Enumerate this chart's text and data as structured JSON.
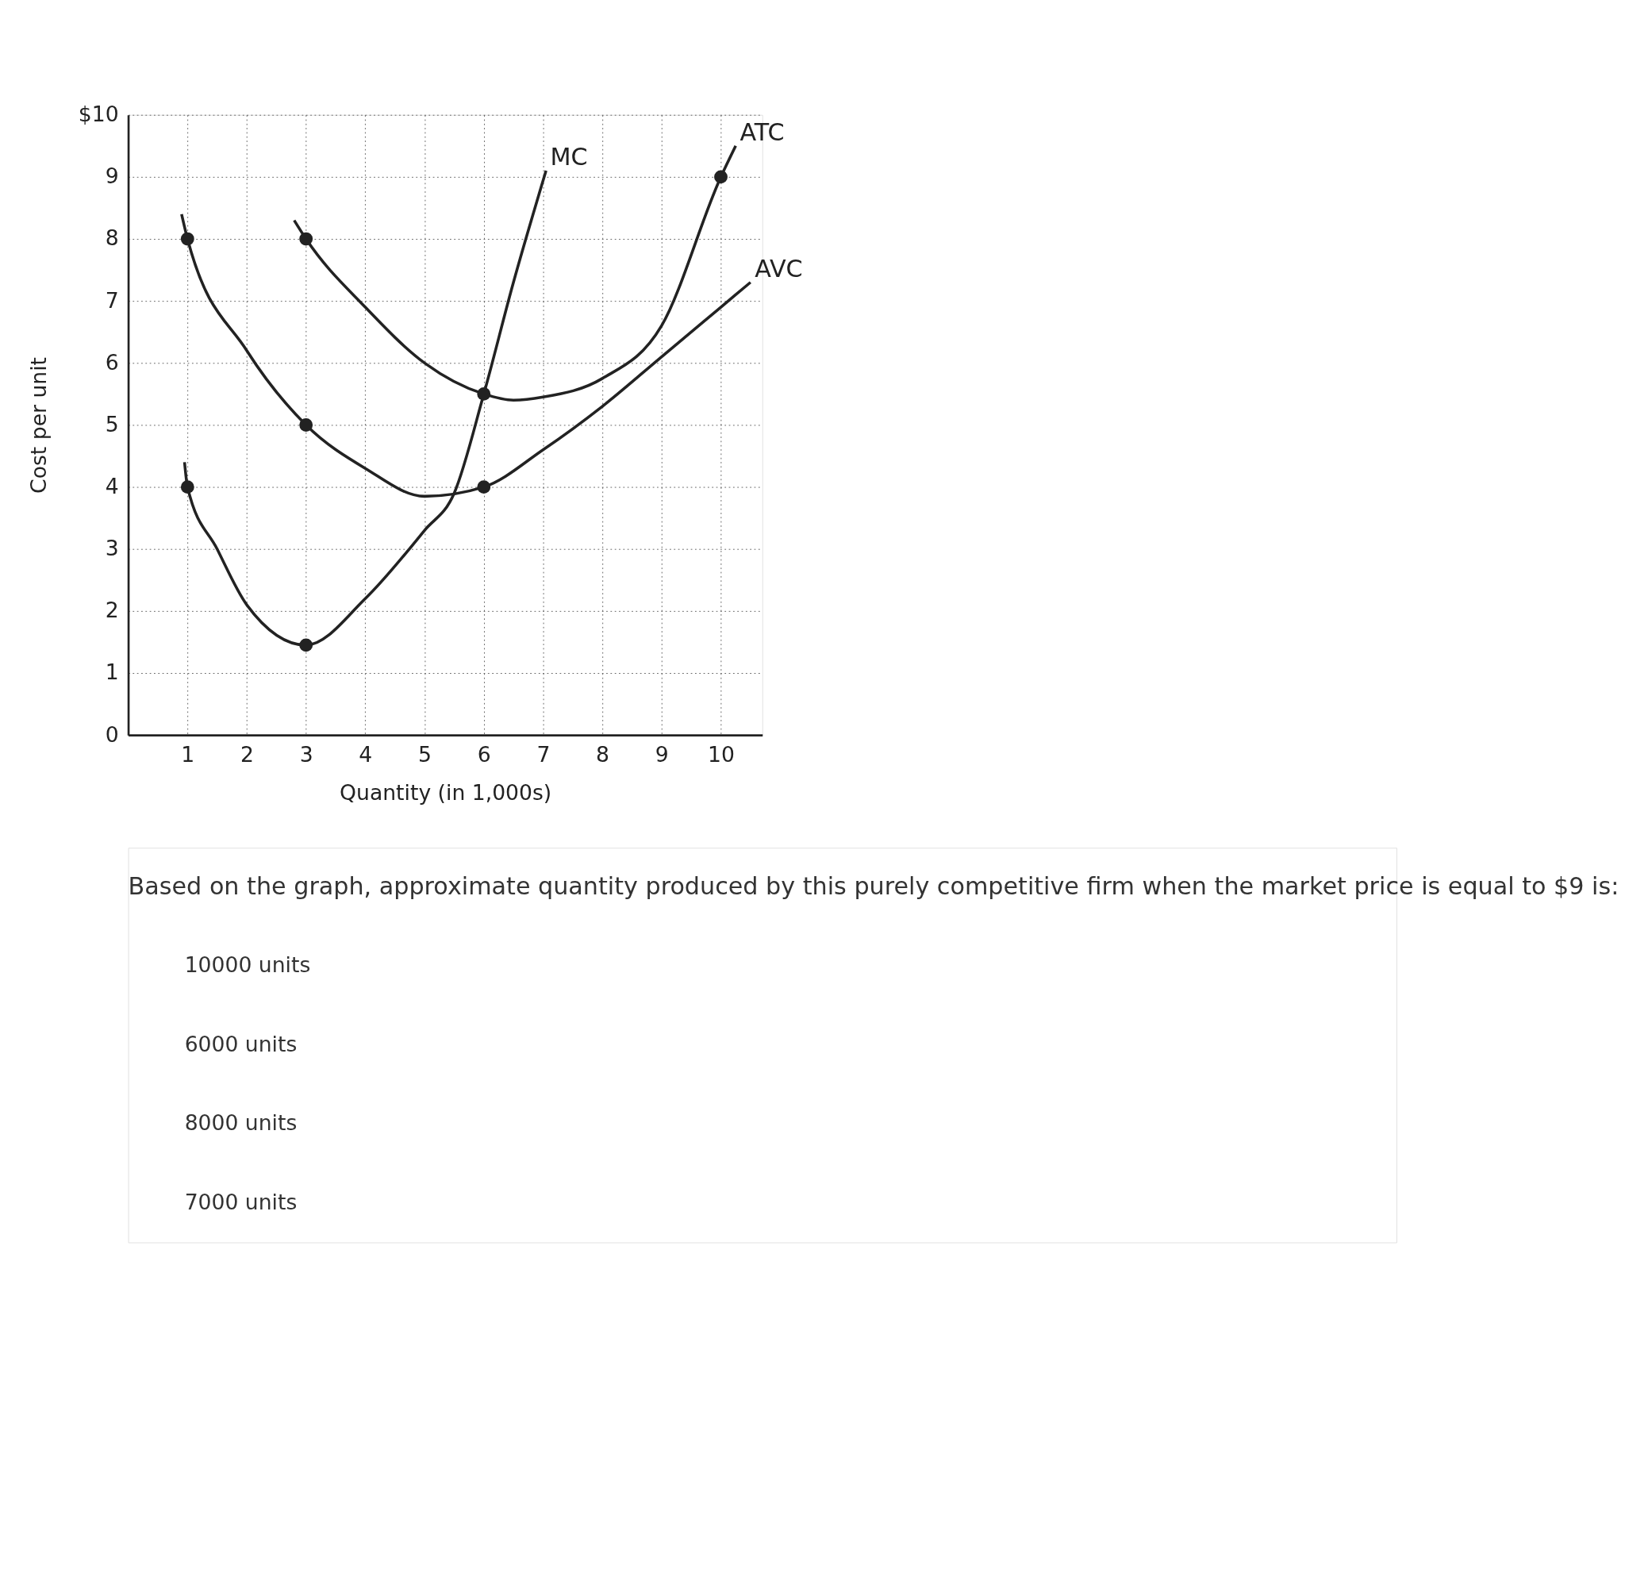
{
  "chart_data": {
    "type": "line",
    "xlabel": "Quantity (in 1,000s)",
    "ylabel": "Cost per unit",
    "xlim": [
      0,
      10.7
    ],
    "ylim": [
      0,
      10
    ],
    "xticks": [
      1,
      2,
      3,
      4,
      5,
      6,
      7,
      8,
      9,
      10
    ],
    "yticks": [
      0,
      1,
      2,
      3,
      4,
      5,
      6,
      7,
      8,
      9,
      {
        "value": 10,
        "label": "$10"
      }
    ],
    "grid": true,
    "line_style": "solid",
    "series": [
      {
        "name": "MC",
        "color": "#222222",
        "x": [
          0.95,
          1,
          1.5,
          2,
          3,
          4,
          5,
          5.5,
          6,
          6.5,
          7.05
        ],
        "values": [
          4.4,
          4,
          3,
          2.1,
          1.45,
          2.2,
          3.3,
          3.9,
          5.5,
          7.3,
          9.1
        ]
      },
      {
        "name": "ATC",
        "color": "#222222",
        "x": [
          2.8,
          3,
          4,
          5,
          6,
          6.5,
          7,
          8,
          9,
          10,
          10.25
        ],
        "values": [
          8.3,
          8,
          6.9,
          6,
          5.5,
          5.4,
          5.45,
          5.75,
          6.6,
          9,
          9.5
        ]
      },
      {
        "name": "AVC",
        "color": "#222222",
        "x": [
          0.9,
          1,
          2,
          3,
          4,
          5,
          6,
          7,
          8,
          9,
          10,
          10.5
        ],
        "values": [
          8.4,
          8,
          6.2,
          5,
          4.3,
          3.85,
          4,
          4.6,
          5.3,
          6.1,
          6.9,
          7.3
        ]
      },
      {
        "type": "scatter",
        "marker": "circle",
        "color": "#222222",
        "x": [
          1,
          3,
          6,
          1,
          3,
          6,
          3,
          10
        ],
        "values": [
          4,
          1.45,
          5.5,
          8,
          5,
          4,
          8,
          9
        ]
      }
    ],
    "annotations": [
      "Based on the graph, approximate quantity produced by this purely competitive firm when the market price is equal to $9 is:",
      "10000 units",
      "6000 units",
      "8000 units",
      "7000 units"
    ]
  }
}
